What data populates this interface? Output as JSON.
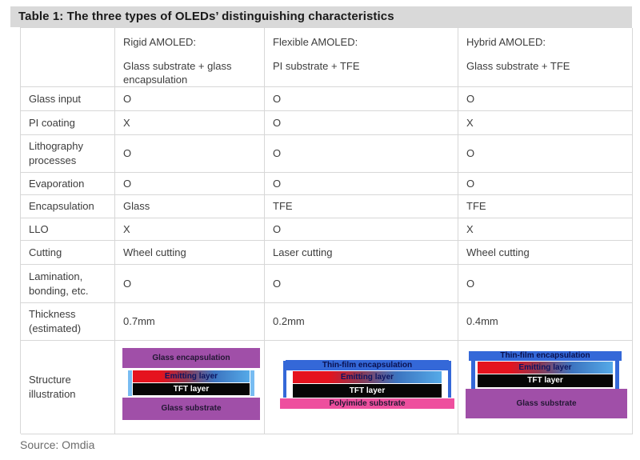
{
  "title": "Table 1: The three types of OLEDs’ distinguishing characteristics",
  "source": "Source: Omdia",
  "header": {
    "columns": [
      {
        "name": "Rigid AMOLED:",
        "subtitle": "Glass substrate + glass encapsulation"
      },
      {
        "name": "Flexible AMOLED:",
        "subtitle": "PI substrate + TFE"
      },
      {
        "name": "Hybrid AMOLED:",
        "subtitle": "Glass substrate + TFE"
      }
    ]
  },
  "rows": [
    {
      "label": "Glass input",
      "values": [
        "O",
        "O",
        "O"
      ]
    },
    {
      "label": "PI coating",
      "values": [
        "X",
        "O",
        "X"
      ]
    },
    {
      "label": "Lithography processes",
      "values": [
        "O",
        "O",
        "O"
      ]
    },
    {
      "label": "Evaporation",
      "values": [
        "O",
        "O",
        "O"
      ]
    },
    {
      "label": "Encapsulation",
      "values": [
        "Glass",
        "TFE",
        "TFE"
      ]
    },
    {
      "label": "LLO",
      "values": [
        "X",
        "O",
        "X"
      ]
    },
    {
      "label": "Cutting",
      "values": [
        "Wheel cutting",
        "Laser cutting",
        "Wheel cutting"
      ]
    },
    {
      "label": "Lamination, bonding, etc.",
      "values": [
        "O",
        "O",
        "O"
      ]
    },
    {
      "label": "Thickness (estimated)",
      "values": [
        "0.7mm",
        "0.2mm",
        "0.4mm"
      ]
    }
  ],
  "structure_row": {
    "label": "Structure illustration",
    "rigid": {
      "top": "Glass encapsulation",
      "emitting": "Emitting layer",
      "tft": "TFT layer",
      "bottom": "Glass substrate"
    },
    "flexible": {
      "top": "Thin-film encapsulation",
      "emitting": "Emitting layer",
      "tft": "TFT layer",
      "bottom": "Polyimide substrate"
    },
    "hybrid": {
      "top": "Thin-film encapsulation",
      "emitting": "Emitting layer",
      "tft": "TFT layer",
      "bottom": "Glass substrate"
    }
  },
  "colors": {
    "title_bg": "#d9d9d9",
    "table_border": "#d7d7d7",
    "purple_glass": "#a04fa8",
    "blue_tfe": "#3468d8",
    "light_blue_seal": "#78bcf2",
    "pink_polyimide": "#ee4f9e",
    "emitting_red": "#e5131e",
    "emitting_blue": "#55aae8",
    "tft_black": "#060606",
    "source_text": "#6b6b6b"
  }
}
